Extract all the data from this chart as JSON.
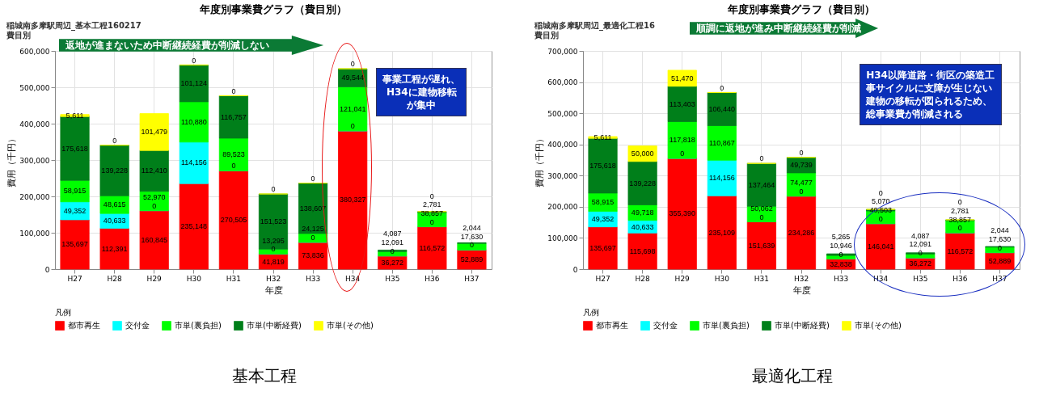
{
  "chart_data": [
    {
      "type": "bar",
      "stacked": true,
      "title": "年度別事業費グラフ（費目別）",
      "subtitle": "稲城南多摩駅周辺_基本工程160217\n費目別",
      "xlabel": "年度",
      "ylabel": "費用（千円）",
      "legend_title": "凡例",
      "legend": "bottom",
      "grid": true,
      "categories": [
        "H27",
        "H28",
        "H29",
        "H30",
        "H31",
        "H32",
        "H33",
        "H34",
        "H35",
        "H36",
        "H37"
      ],
      "ylim": [
        0,
        600000
      ],
      "yticks": [
        {
          "value": 0,
          "label": "0"
        },
        {
          "value": 100000,
          "label": "100,000"
        },
        {
          "value": 200000,
          "label": "200,000"
        },
        {
          "value": 300000,
          "label": "300,000"
        },
        {
          "value": 400000,
          "label": "400,000"
        },
        {
          "value": 500000,
          "label": "500,000"
        },
        {
          "value": 600000,
          "label": "600,000"
        }
      ],
      "series": [
        {
          "name": "都市再生",
          "color": "#ff0000",
          "values": [
            135697,
            112391,
            160845,
            235148,
            270505,
            41819,
            73836,
            380327,
            36272,
            116572,
            52889
          ],
          "value_labels": [
            "135,697",
            "112,391",
            "160,845",
            "235,148",
            "270,505",
            "41,819",
            "73,836",
            "380,327",
            "36,272",
            "116,572",
            "52,889"
          ]
        },
        {
          "name": "交付金",
          "color": "#00ffff",
          "values": [
            49352,
            40633,
            0,
            114156,
            0,
            0,
            0,
            0,
            0,
            0,
            0
          ],
          "value_labels": [
            "49,352",
            "40,633",
            "0",
            "114,156",
            "0",
            "0",
            "0",
            "0",
            "0",
            "0",
            "0"
          ]
        },
        {
          "name": "市単(裏負担)",
          "color": "#00ff00",
          "values": [
            58915,
            48615,
            52970,
            110880,
            89523,
            13295,
            24125,
            121041,
            12091,
            38857,
            17630
          ],
          "value_labels": [
            "58,915",
            "48,615",
            "52,970",
            "110,880",
            "89,523",
            "13,295",
            "24,125",
            "121,041",
            "12,091",
            "38,857",
            "17,630"
          ]
        },
        {
          "name": "市単(中断経費)",
          "color": "#007f1a",
          "values": [
            175618,
            139228,
            112410,
            101124,
            116757,
            151523,
            138607,
            49544,
            4087,
            2781,
            2044
          ],
          "value_labels": [
            "175,618",
            "139,228",
            "112,410",
            "101,124",
            "116,757",
            "151,523",
            "138,607",
            "49,544",
            "4,087",
            "2,781",
            "2,044"
          ]
        },
        {
          "name": "市単(その他)",
          "color": "#ffff00",
          "values": [
            5611,
            0,
            101479,
            0,
            0,
            0,
            0,
            0,
            null,
            0,
            null
          ],
          "value_labels": [
            "5,611",
            "0",
            "101,479",
            "0",
            "0",
            "0",
            "0",
            "0",
            null,
            "0",
            null
          ]
        }
      ],
      "annotations": [
        "返地が進まないため中断継続経費が削減しない",
        "事業工程が遅れ、H34に建物移転が集中",
        "基本工程"
      ]
    },
    {
      "type": "bar",
      "stacked": true,
      "title": "年度別事業費グラフ（費目別）",
      "subtitle": "稲城南多摩駅周辺_最適化工程16\n費目別",
      "xlabel": "年度",
      "ylabel": "費用（千円）",
      "legend_title": "凡例",
      "legend": "bottom",
      "grid": true,
      "categories": [
        "H27",
        "H28",
        "H29",
        "H30",
        "H31",
        "H32",
        "H33",
        "H34",
        "H35",
        "H36",
        "H37"
      ],
      "ylim": [
        0,
        700000
      ],
      "yticks": [
        {
          "value": 0,
          "label": "0"
        },
        {
          "value": 100000,
          "label": "100,000"
        },
        {
          "value": 200000,
          "label": "200,000"
        },
        {
          "value": 300000,
          "label": "300,000"
        },
        {
          "value": 400000,
          "label": "400,000"
        },
        {
          "value": 500000,
          "label": "500,000"
        },
        {
          "value": 600000,
          "label": "600,000"
        },
        {
          "value": 700000,
          "label": "700,000"
        }
      ],
      "series": [
        {
          "name": "都市再生",
          "color": "#ff0000",
          "values": [
            135697,
            115698,
            355390,
            235109,
            151639,
            234286,
            32838,
            146041,
            36272,
            116572,
            52889
          ],
          "value_labels": [
            "135,697",
            "115,698",
            "355,390",
            "235,109",
            "151,639",
            "234,286",
            "32,838",
            "146,041",
            "36,272",
            "116,572",
            "52,889"
          ]
        },
        {
          "name": "交付金",
          "color": "#00ffff",
          "values": [
            49352,
            40633,
            0,
            114156,
            0,
            0,
            0,
            0,
            0,
            0,
            0
          ],
          "value_labels": [
            "49,352",
            "40,633",
            "0",
            "114,156",
            "0",
            "0",
            "0",
            "0",
            "0",
            "0",
            "0"
          ]
        },
        {
          "name": "市単(裏負担)",
          "color": "#00ff00",
          "values": [
            58915,
            49718,
            117818,
            110867,
            50062,
            74477,
            10946,
            40503,
            12091,
            38857,
            17630
          ],
          "value_labels": [
            "58,915",
            "49,718",
            "117,818",
            "110,867",
            "50,062",
            "74,477",
            "10,946",
            "40,503",
            "12,091",
            "38,857",
            "17,630"
          ]
        },
        {
          "name": "市単(中断経費)",
          "color": "#007f1a",
          "values": [
            175618,
            139228,
            113403,
            106440,
            137464,
            49739,
            5265,
            5070,
            4087,
            2781,
            2044
          ],
          "value_labels": [
            "175,618",
            "139,228",
            "113,403",
            "106,440",
            "137,464",
            "49,739",
            "5,265",
            "5,070",
            "4,087",
            "2,781",
            "2,044"
          ]
        },
        {
          "name": "市単(その他)",
          "color": "#ffff00",
          "values": [
            5611,
            50000,
            51470,
            0,
            0,
            0,
            null,
            0,
            null,
            0,
            null
          ],
          "value_labels": [
            "5,611",
            "50,000",
            "51,470",
            "0",
            "0",
            "0",
            null,
            "0",
            null,
            "0",
            null
          ]
        }
      ],
      "annotations": [
        "順調に返地が進み中断継続経費が削減",
        "H34以降道路・街区の築造工事サイクルに支障が生じない建物の移転が図られるため、総事業費が削減される",
        "最適化工程"
      ]
    }
  ]
}
